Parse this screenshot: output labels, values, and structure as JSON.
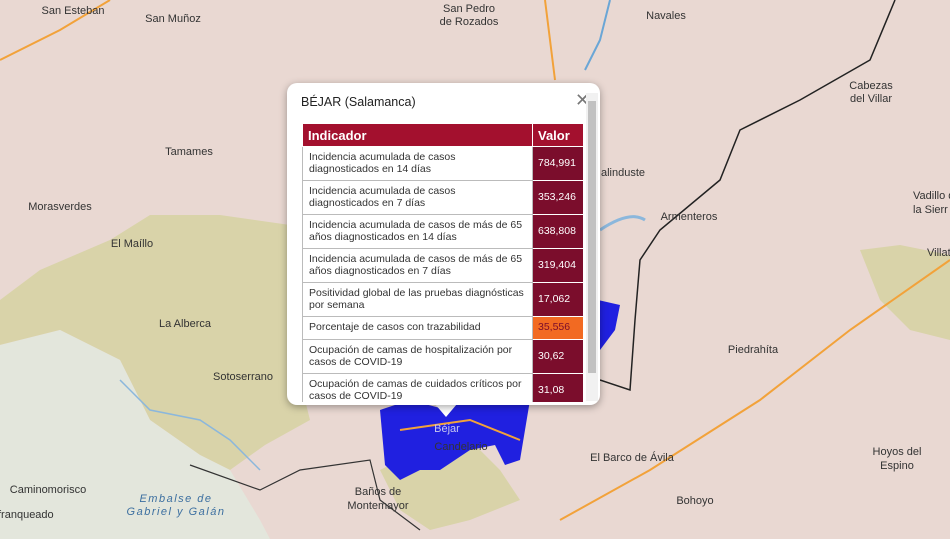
{
  "popup": {
    "title": "BÉJAR (Salamanca)",
    "table": {
      "header": [
        "Indicador",
        "Valor"
      ],
      "rows": [
        {
          "indicator": "Incidencia acumulada de casos diagnosticados en 14 días",
          "value": "784,991"
        },
        {
          "indicator": "Incidencia acumulada de casos diagnosticados en 7 días",
          "value": "353,246"
        },
        {
          "indicator": "Incidencia acumulada de casos de más de 65 años diagnosticados en 14 días",
          "value": "638,808"
        },
        {
          "indicator": "Incidencia acumulada de casos de más de 65 años diagnosticados en 7 días",
          "value": "319,404"
        },
        {
          "indicator": "Positividad global de las pruebas diagnósticas por semana",
          "value": "17,062"
        },
        {
          "indicator": "Porcentaje de casos con trazabilidad",
          "value": "35,556"
        },
        {
          "indicator": "Ocupación de camas de hospitalización por casos de COVID-19",
          "value": "30,62"
        },
        {
          "indicator": "Ocupación de camas de cuidados críticos por casos de COVID-19",
          "value": "31,08"
        }
      ]
    }
  },
  "map": {
    "labels": [
      {
        "lines": [
          "San Esteban"
        ]
      },
      {
        "lines": [
          "San Muñoz"
        ]
      },
      {
        "lines": [
          "San Pedro",
          "de Rozados"
        ]
      },
      {
        "lines": [
          "Navales"
        ]
      },
      {
        "lines": [
          "Cabezas",
          "del Villar"
        ]
      },
      {
        "lines": [
          "Tamames"
        ]
      },
      {
        "lines": [
          "Morasverdes"
        ]
      },
      {
        "lines": [
          "El Maíllo"
        ]
      },
      {
        "lines": [
          "La Alberca"
        ]
      },
      {
        "lines": [
          "Sotoserrano"
        ]
      },
      {
        "lines": [
          "Armenteros"
        ]
      },
      {
        "lines": [
          "Vadillo de",
          "la Sierr"
        ]
      },
      {
        "lines": [
          "Villat"
        ]
      },
      {
        "lines": [
          "Piedrahíta"
        ]
      },
      {
        "lines": [
          "El Barco de Ávila"
        ]
      },
      {
        "lines": [
          "Hoyos del",
          "Espino"
        ]
      },
      {
        "lines": [
          "Bohoyo"
        ]
      },
      {
        "lines": [
          "Caminomorisco"
        ]
      },
      {
        "lines": [
          "Embalse de",
          "Gabriel y Galán"
        ]
      },
      {
        "lines": [
          "franqueado"
        ]
      },
      {
        "lines": [
          "Baños de",
          "Montemayor"
        ]
      },
      {
        "lines": [
          "Béjar"
        ]
      },
      {
        "lines": [
          "Candelario"
        ]
      },
      {
        "lines": [
          "alinduste"
        ]
      }
    ]
  }
}
